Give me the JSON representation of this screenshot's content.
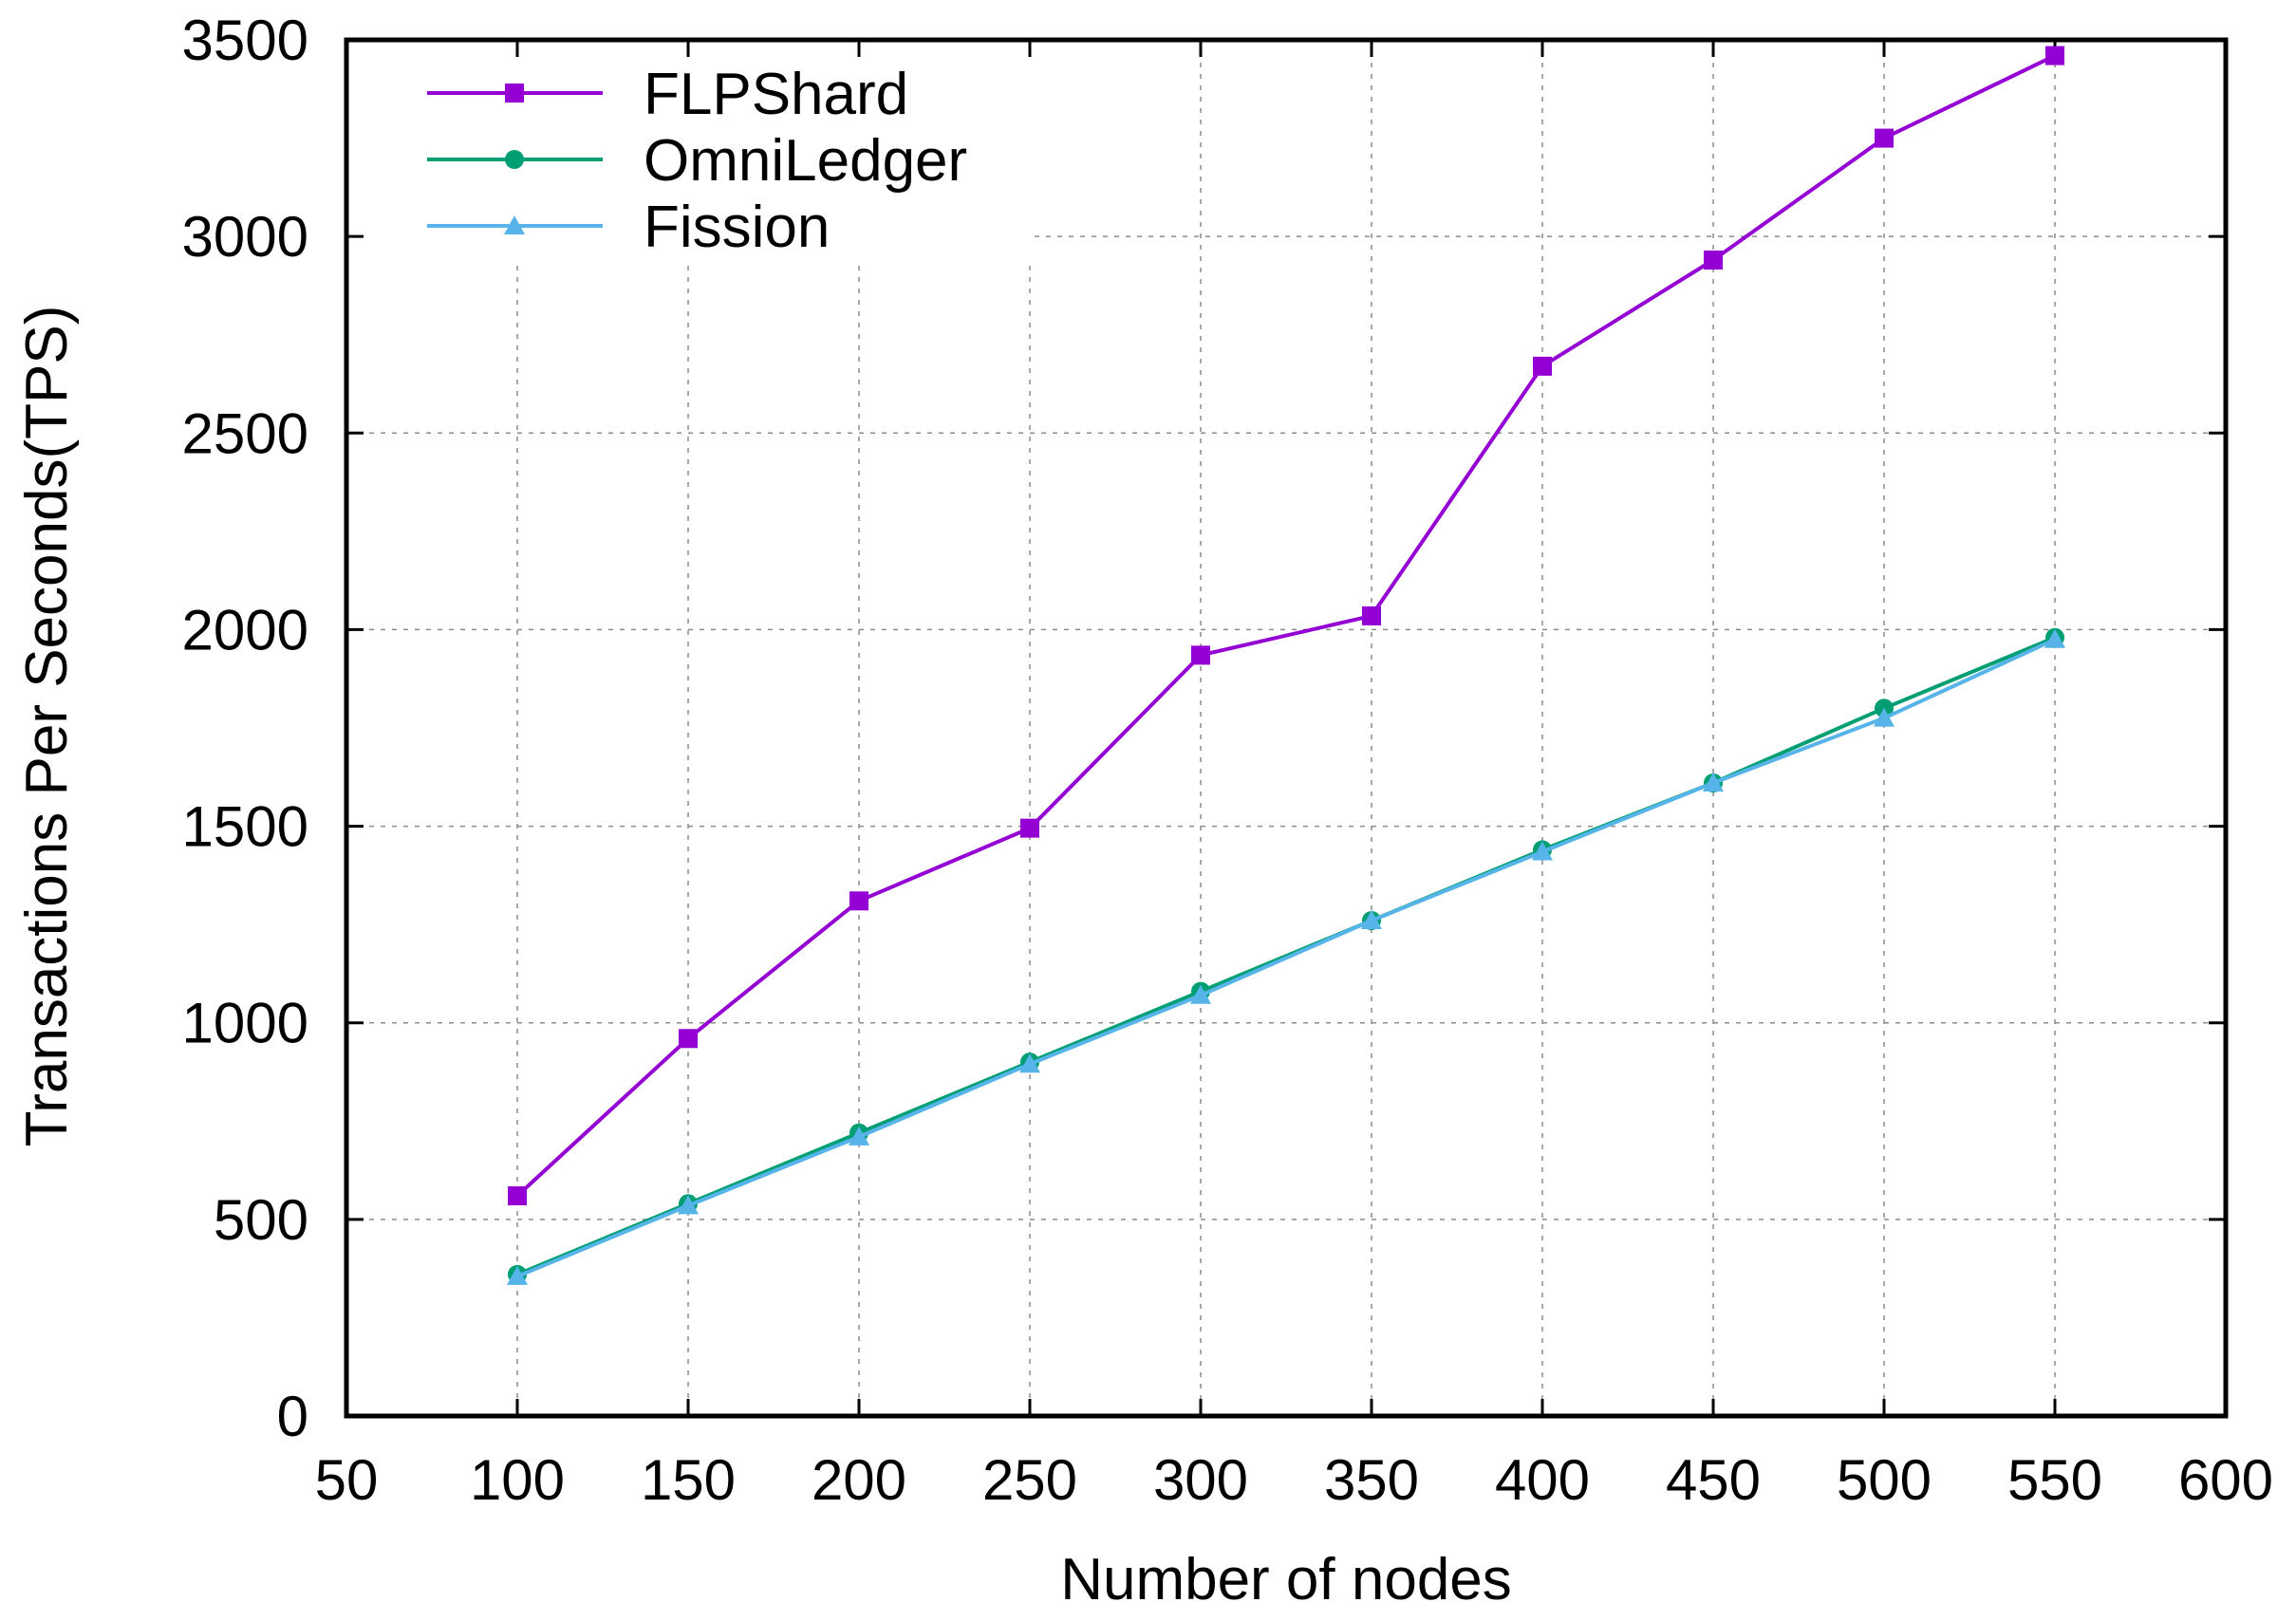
{
  "chart_data": {
    "type": "line",
    "title": "",
    "xlabel": "Number of nodes",
    "ylabel": "Transactions Per Seconds(TPS)",
    "xlim": [
      50,
      600
    ],
    "ylim": [
      0,
      3500
    ],
    "xticks": [
      50,
      100,
      150,
      200,
      250,
      300,
      350,
      400,
      450,
      500,
      550,
      600
    ],
    "yticks": [
      0,
      500,
      1000,
      1500,
      2000,
      2500,
      3000,
      3500
    ],
    "grid": true,
    "legend_position": "top-left",
    "x": [
      100,
      150,
      200,
      250,
      300,
      350,
      400,
      450,
      500,
      550
    ],
    "series": [
      {
        "name": "FLPShard",
        "color": "#9400d3",
        "marker": "square",
        "values": [
          560,
          960,
          1310,
          1495,
          1935,
          2035,
          2670,
          2940,
          3250,
          3460
        ]
      },
      {
        "name": "OmniLedger",
        "color": "#009e73",
        "marker": "circle",
        "values": [
          360,
          540,
          720,
          900,
          1080,
          1260,
          1440,
          1610,
          1800,
          1980
        ]
      },
      {
        "name": "Fission",
        "color": "#56b4e9",
        "marker": "triangle",
        "values": [
          355,
          535,
          710,
          895,
          1070,
          1260,
          1435,
          1610,
          1775,
          1975
        ]
      }
    ]
  }
}
